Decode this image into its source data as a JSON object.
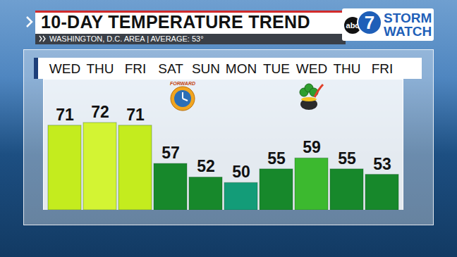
{
  "chart_data": {
    "type": "bar",
    "title": "10-DAY TEMPERATURE TREND",
    "subtitle": "WASHINGTON, D.C. AREA | AVERAGE: 53°",
    "categories": [
      "WED",
      "THU",
      "FRI",
      "SAT",
      "SUN",
      "MON",
      "TUE",
      "WED",
      "THU",
      "FRI"
    ],
    "values": [
      71,
      72,
      71,
      57,
      52,
      50,
      55,
      59,
      55,
      53
    ],
    "colors": [
      "#c4ec1e",
      "#d3f433",
      "#c4ec1e",
      "#17882b",
      "#17882b",
      "#139c78",
      "#17882b",
      "#3cb92f",
      "#17882b",
      "#17882b"
    ],
    "ylim": [
      40,
      88
    ],
    "tick_labels": "x",
    "data_labels": true,
    "annotations": [
      "abc",
      "7",
      "STORM WATCH",
      "FORWARD"
    ]
  }
}
